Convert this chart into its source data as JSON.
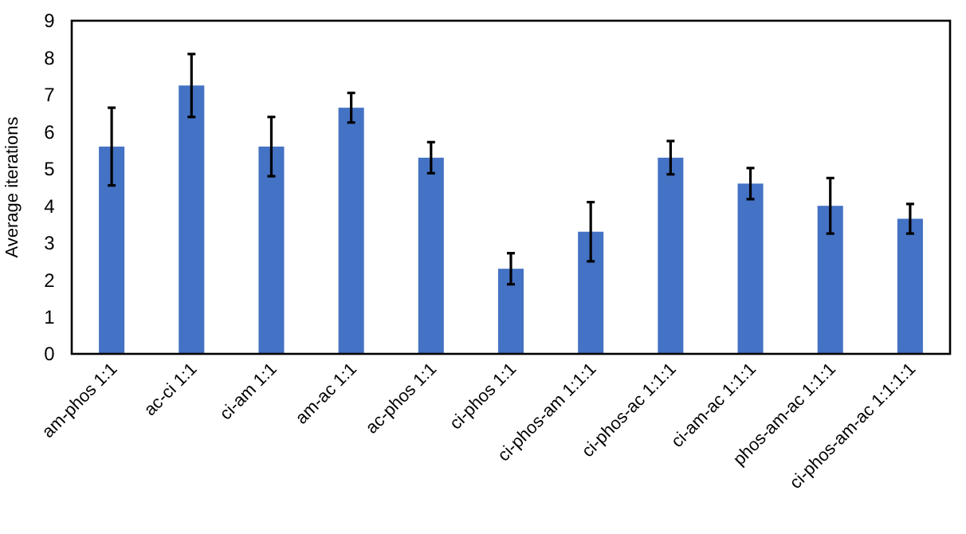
{
  "chart_data": {
    "type": "bar",
    "ylabel": "Average iterations",
    "categories": [
      "am-phos 1:1",
      "ac-ci 1:1",
      "ci-am 1:1",
      "am-ac 1:1",
      "ac-phos 1:1",
      "ci-phos 1:1",
      "ci-phos-am 1:1:1",
      "ci-phos-ac 1:1:1",
      "ci-am-ac 1:1:1",
      "phos-am-ac 1:1:1",
      "ci-phos-am-ac 1:1:1:1"
    ],
    "values": [
      5.6,
      7.25,
      5.6,
      6.65,
      5.3,
      2.3,
      3.3,
      5.3,
      4.6,
      4.0,
      3.65
    ],
    "errors": [
      1.05,
      0.85,
      0.8,
      0.4,
      0.42,
      0.42,
      0.8,
      0.45,
      0.42,
      0.75,
      0.4
    ],
    "color": "#4472c4",
    "ylim": [
      0,
      9
    ],
    "yticks": [
      0,
      1,
      2,
      3,
      4,
      5,
      6,
      7,
      8,
      9
    ],
    "grid": false
  }
}
